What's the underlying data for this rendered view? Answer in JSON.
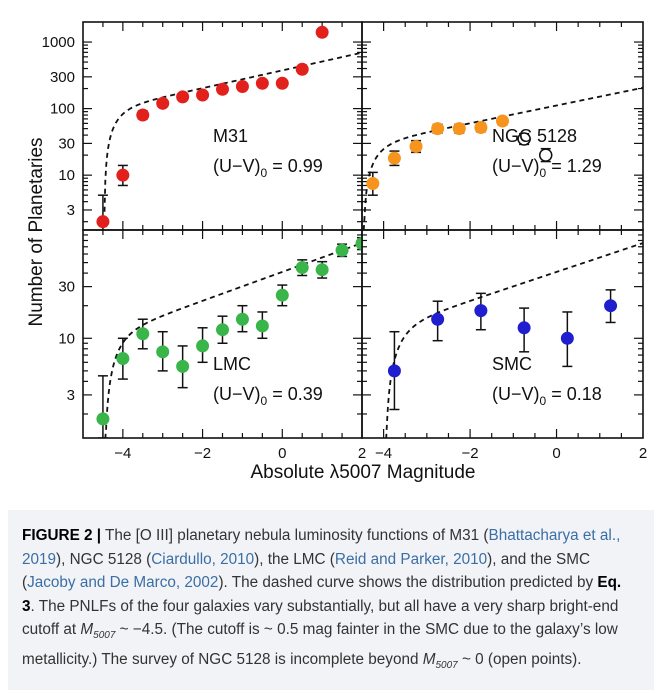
{
  "figure": {
    "ylabel": "Number of Planetaries",
    "xlabel": "Absolute λ5007 Magnitude",
    "x_ticks_left": [
      "−4",
      "−2",
      "0",
      "2"
    ],
    "x_ticks_right": [
      "−4",
      "−2",
      "0",
      "2"
    ],
    "y_ticks_top": [
      "1000",
      "300",
      "100",
      "30",
      "10",
      "3"
    ],
    "y_ticks_bottom": [
      "30",
      "10",
      "3"
    ]
  },
  "caption": {
    "label": "FIGURE 2 |",
    "t1": " The [O III] planetary nebula luminosity functions of M31 (",
    "r1": "Bhattacharya et al., 2019",
    "t2": "), NGC 5128 (",
    "r2": "Ciardullo, 2010",
    "t3": "), the LMC (",
    "r3": "Reid and Parker, 2010",
    "t4": "), and the SMC (",
    "r4": "Jacoby and De Marco, 2002",
    "t5": "). The dashed curve shows the distribution predicted by ",
    "eq": "Eq. 3",
    "t6": ". The PNLFs of the four galaxies vary substantially, but all have a very sharp bright-end cutoff at ",
    "m1": "M",
    "m1sub": "5007",
    "t7": " ~ −4.5. (The cutoff is ~ 0.5 mag fainter in the SMC due to the galaxy’s low metallicity.) The survey of NGC 5128 is incomplete beyond ",
    "m2": "M",
    "m2sub": "5007",
    "t8": " ~ 0 (open points)."
  },
  "chart_data": [
    {
      "type": "scatter",
      "panel": "top-left",
      "label": "M31",
      "color_label": "(U−V)",
      "color_sub": "0",
      "color_value": " = 0.99",
      "marker_color": "#e3211c",
      "x_range": [
        -5,
        2
      ],
      "y_range": [
        1.5,
        2000
      ],
      "y_scale": "log",
      "points": [
        {
          "x": -4.5,
          "y": 2,
          "err": [
            1,
            5
          ],
          "open": false
        },
        {
          "x": -4.0,
          "y": 10,
          "err": [
            7,
            14
          ],
          "open": false
        },
        {
          "x": -3.5,
          "y": 80,
          "err": [
            70,
            92
          ],
          "open": false
        },
        {
          "x": -3.0,
          "y": 120,
          "err": [
            108,
            133
          ],
          "open": false
        },
        {
          "x": -2.5,
          "y": 150,
          "err": [
            137,
            165
          ],
          "open": false
        },
        {
          "x": -2.0,
          "y": 160,
          "err": [
            146,
            176
          ],
          "open": false
        },
        {
          "x": -1.5,
          "y": 195,
          "err": [
            180,
            212
          ],
          "open": false
        },
        {
          "x": -1.0,
          "y": 215,
          "err": [
            200,
            233
          ],
          "open": false
        },
        {
          "x": -0.5,
          "y": 240,
          "err": [
            222,
            259
          ],
          "open": false
        },
        {
          "x": 0.0,
          "y": 240,
          "err": [
            222,
            259
          ],
          "open": false
        },
        {
          "x": 0.5,
          "y": 390,
          "err": [
            368,
            415
          ],
          "open": false
        },
        {
          "x": 1.0,
          "y": 1400,
          "err": [
            1330,
            1470
          ],
          "open": false
        }
      ],
      "curve": {
        "norm": 128
      }
    },
    {
      "type": "scatter",
      "panel": "top-right",
      "label": "NGC 5128",
      "color_label": "(U−V)",
      "color_sub": "0",
      "color_value": " = 1.29",
      "marker_color": "#f7941d",
      "x_range": [
        -4.5,
        2
      ],
      "y_range": [
        1.5,
        2000
      ],
      "y_scale": "log",
      "points": [
        {
          "x": -4.25,
          "y": 7.5,
          "err": [
            5,
            11
          ],
          "open": false
        },
        {
          "x": -3.75,
          "y": 18,
          "err": [
            14,
            23
          ],
          "open": false
        },
        {
          "x": -3.25,
          "y": 27,
          "err": [
            22,
            33
          ],
          "open": false
        },
        {
          "x": -2.75,
          "y": 50,
          "err": [
            43,
            58
          ],
          "open": false
        },
        {
          "x": -2.25,
          "y": 50,
          "err": [
            43,
            58
          ],
          "open": false
        },
        {
          "x": -1.75,
          "y": 52,
          "err": [
            45,
            60
          ],
          "open": false
        },
        {
          "x": -1.25,
          "y": 65,
          "err": [
            57,
            74
          ],
          "open": false
        },
        {
          "x": -0.75,
          "y": 35,
          "err": [
            29,
            42
          ],
          "open": true
        },
        {
          "x": -0.25,
          "y": 20,
          "err": [
            16,
            25
          ],
          "open": true
        }
      ],
      "curve": {
        "norm": 38
      }
    },
    {
      "type": "scatter",
      "panel": "bottom-left",
      "label": "LMC",
      "color_label": "(U−V)",
      "color_sub": "0",
      "color_value": " = 0.39",
      "marker_color": "#39b54a",
      "x_range": [
        -5,
        2
      ],
      "y_range": [
        1.2,
        100
      ],
      "y_scale": "log",
      "points": [
        {
          "x": -4.5,
          "y": 1.8,
          "err": [
            1.2,
            4.5
          ],
          "open": false
        },
        {
          "x": -4.0,
          "y": 6.5,
          "err": [
            4.2,
            10
          ],
          "open": false
        },
        {
          "x": -3.5,
          "y": 11,
          "err": [
            8,
            15
          ],
          "open": false
        },
        {
          "x": -3.0,
          "y": 7.5,
          "err": [
            5,
            11.5
          ],
          "open": false
        },
        {
          "x": -2.5,
          "y": 5.5,
          "err": [
            3.5,
            8.5
          ],
          "open": false
        },
        {
          "x": -2.0,
          "y": 8.5,
          "err": [
            6,
            12.5
          ],
          "open": false
        },
        {
          "x": -1.5,
          "y": 12,
          "err": [
            9,
            16
          ],
          "open": false
        },
        {
          "x": -1.0,
          "y": 15,
          "err": [
            11.5,
            20
          ],
          "open": false
        },
        {
          "x": -0.5,
          "y": 13,
          "err": [
            10,
            17.5
          ],
          "open": false
        },
        {
          "x": 0.0,
          "y": 25,
          "err": [
            20,
            31
          ],
          "open": false
        },
        {
          "x": 0.5,
          "y": 45,
          "err": [
            38,
            53
          ],
          "open": false
        },
        {
          "x": 1.0,
          "y": 43,
          "err": [
            36,
            51
          ],
          "open": false
        },
        {
          "x": 1.5,
          "y": 65,
          "err": [
            57,
            74
          ],
          "open": false
        },
        {
          "x": 2.0,
          "y": 75,
          "err": [
            66,
            85
          ],
          "open": false
        }
      ],
      "curve": {
        "norm": 14
      }
    },
    {
      "type": "scatter",
      "panel": "bottom-right",
      "label": "SMC",
      "color_label": "(U−V)",
      "color_sub": "0",
      "color_value": " = 0.18",
      "marker_color": "#1f1fcf",
      "x_range": [
        -4.5,
        2
      ],
      "y_range": [
        1.2,
        100
      ],
      "y_scale": "log",
      "points": [
        {
          "x": -3.75,
          "y": 5,
          "err": [
            2.2,
            11.5
          ],
          "open": false
        },
        {
          "x": -2.75,
          "y": 15,
          "err": [
            9.5,
            22
          ],
          "open": false
        },
        {
          "x": -1.75,
          "y": 18,
          "err": [
            12,
            26
          ],
          "open": false
        },
        {
          "x": -0.75,
          "y": 12.5,
          "err": [
            7.5,
            19
          ],
          "open": false
        },
        {
          "x": 0.25,
          "y": 10,
          "err": [
            5.5,
            17.5
          ],
          "open": false
        },
        {
          "x": 1.25,
          "y": 20,
          "err": [
            14,
            28
          ],
          "open": false
        }
      ],
      "curve": {
        "norm": 14,
        "cutoff_shift": 0.5
      }
    }
  ]
}
